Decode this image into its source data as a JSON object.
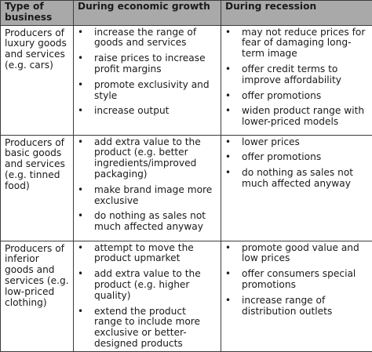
{
  "table": {
    "headers": [
      "Type of business",
      "During economic growth",
      "During recession"
    ],
    "rows": [
      {
        "type": "Producers of luxury goods and services (e.g. cars)",
        "growth": [
          "increase the range of goods and services",
          "raise prices to increase profit margins",
          "promote exclusivity and style",
          "increase output"
        ],
        "recession": [
          "may not reduce prices for fear of damaging long-term image",
          "offer credit terms to improve affordability",
          "offer promotions",
          "widen product range with lower-priced models"
        ]
      },
      {
        "type": "Producers of basic goods and services (e.g. tinned food)",
        "growth": [
          "add extra value to the product (e.g. better ingredients/improved packaging)",
          "make brand image more exclusive",
          "do nothing as sales not much affected anyway"
        ],
        "recession": [
          "lower prices",
          "offer promotions",
          "do nothing as sales not much affected anyway"
        ]
      },
      {
        "type": "Producers of inferior goods and services (e.g. low-priced clothing)",
        "growth": [
          "attempt to move the product upmarket",
          "add extra value to the product (e.g. higher quality)",
          "extend the product range to include more exclusive or better-designed products"
        ],
        "recession": [
          "promote good value and low prices",
          "offer consumers special promotions",
          "increase range of distribution outlets"
        ]
      }
    ],
    "bullet_symbol": "•"
  }
}
